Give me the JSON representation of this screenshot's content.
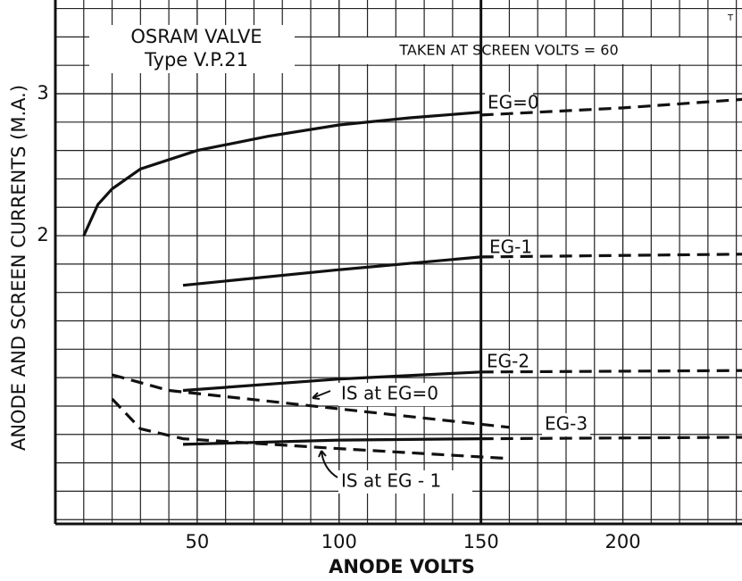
{
  "chart_data": {
    "type": "line",
    "title": "OSRAM VALVE",
    "subtitle": "Type V.P.21",
    "annotation": "TAKEN AT SCREEN VOLTS = 60",
    "corner_mark": "T",
    "xlabel": "ANODE VOLTS",
    "ylabel": "ANODE AND SCREEN CURRENTS (M.A.)",
    "xlim": [
      0,
      242
    ],
    "ylim": [
      -0.03,
      3.66
    ],
    "xticks": [
      50,
      100,
      150,
      200
    ],
    "yticks": [
      2,
      3
    ],
    "grid": true,
    "series": [
      {
        "name": "EG=0",
        "color": "#111",
        "dash": false,
        "x": [
          10,
          15,
          20,
          30,
          50,
          75,
          100,
          125,
          150
        ],
        "values": [
          2.0,
          2.22,
          2.33,
          2.47,
          2.6,
          2.7,
          2.78,
          2.83,
          2.87
        ]
      },
      {
        "name": null,
        "color": "#111",
        "dash": true,
        "x": [
          150,
          200,
          242
        ],
        "values": [
          2.85,
          2.9,
          2.96
        ]
      },
      {
        "name": "EG-1",
        "color": "#111",
        "dash": false,
        "x": [
          45,
          100,
          150
        ],
        "values": [
          1.65,
          1.76,
          1.85
        ]
      },
      {
        "name": null,
        "color": "#111",
        "dash": true,
        "x": [
          150,
          242
        ],
        "values": [
          1.85,
          1.87
        ]
      },
      {
        "name": "EG-2",
        "color": "#111",
        "dash": false,
        "x": [
          45,
          100,
          150
        ],
        "values": [
          0.91,
          0.99,
          1.04
        ]
      },
      {
        "name": null,
        "color": "#111",
        "dash": true,
        "x": [
          150,
          242
        ],
        "values": [
          1.04,
          1.05
        ]
      },
      {
        "name": "EG-3",
        "color": "#111",
        "dash": false,
        "x": [
          45,
          100,
          150
        ],
        "values": [
          0.53,
          0.56,
          0.57
        ]
      },
      {
        "name": null,
        "color": "#111",
        "dash": true,
        "x": [
          150,
          242
        ],
        "values": [
          0.57,
          0.58
        ]
      },
      {
        "name": "IS at EG=0",
        "color": "#111",
        "dash": true,
        "x": [
          20,
          40,
          100,
          160
        ],
        "values": [
          1.02,
          0.91,
          0.78,
          0.65
        ]
      },
      {
        "name": "IS at EG - 1",
        "color": "#111",
        "dash": true,
        "x": [
          20,
          30,
          45,
          100,
          160
        ],
        "values": [
          0.85,
          0.64,
          0.57,
          0.5,
          0.43
        ]
      }
    ]
  }
}
